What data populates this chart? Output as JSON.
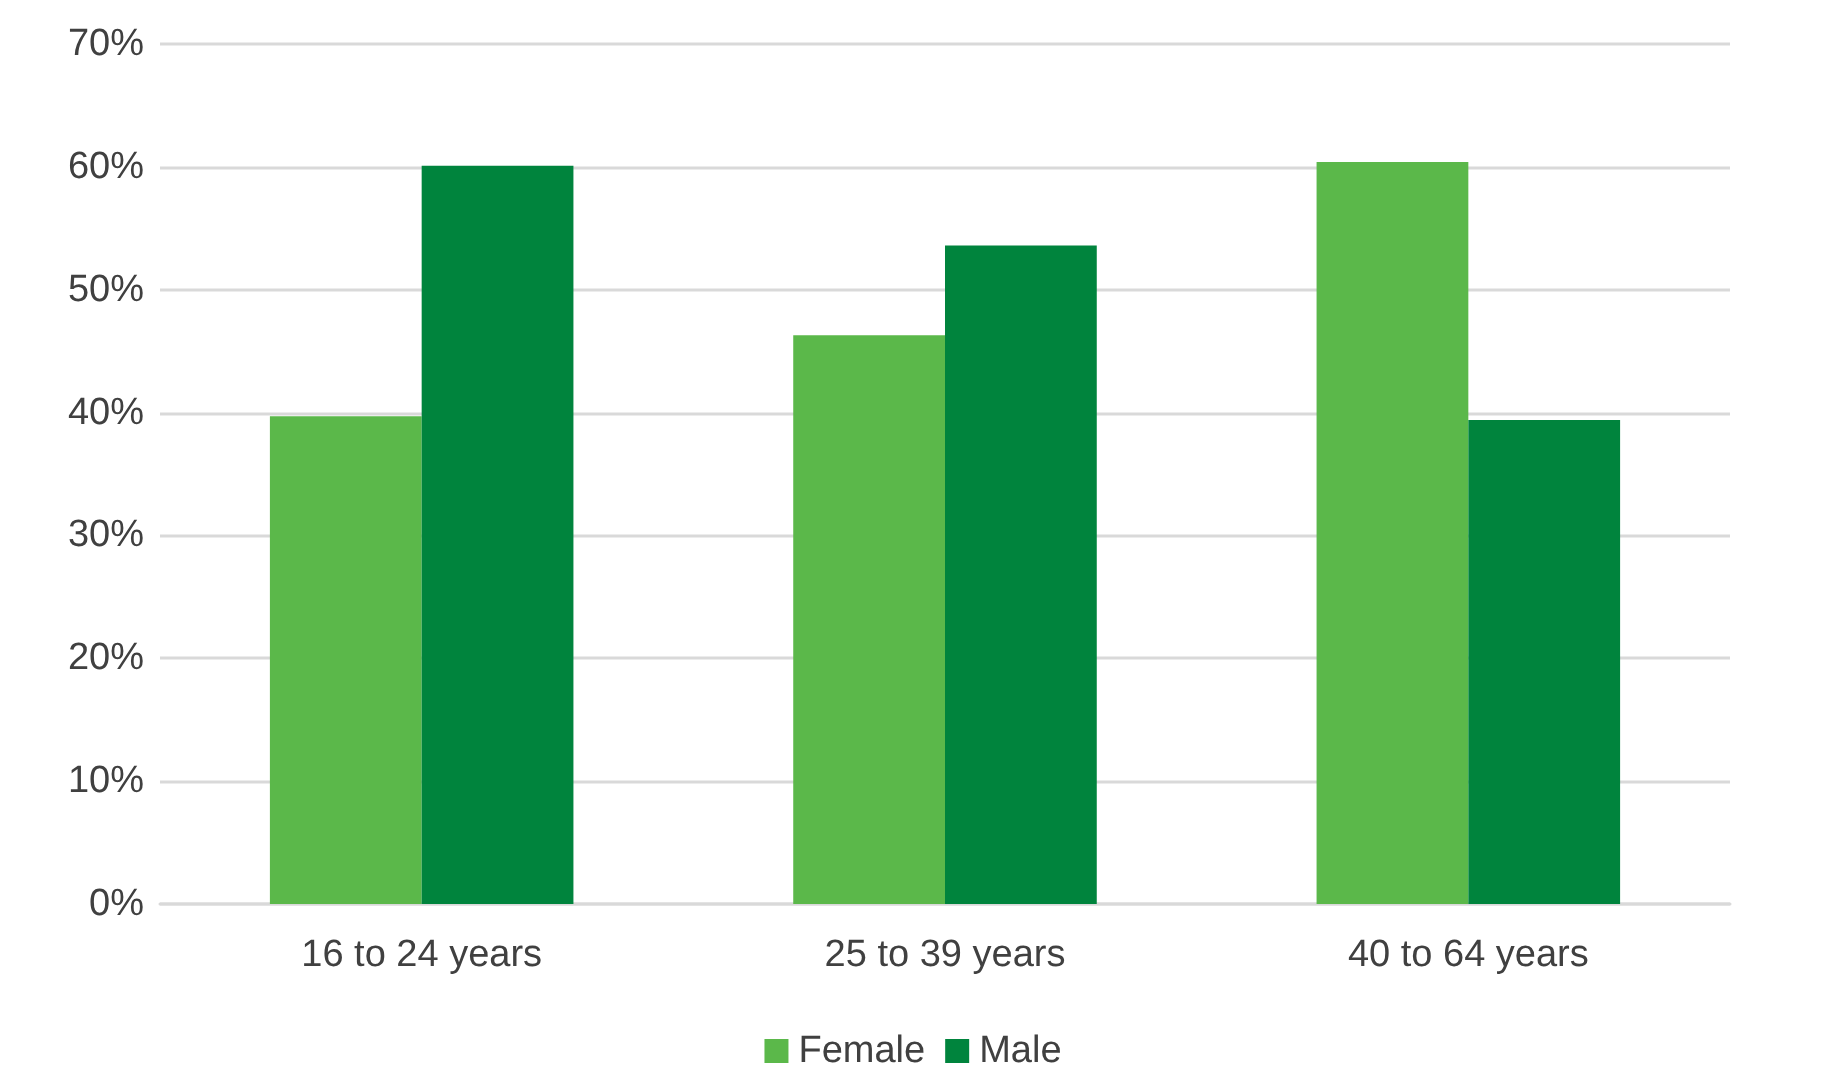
{
  "chart_data": {
    "type": "bar",
    "categories": [
      "16 to 24 years",
      "25 to 39 years",
      "40 to 64 years"
    ],
    "series": [
      {
        "name": "Female",
        "color": "#5bb84a",
        "values": [
          39.7,
          46.3,
          60.4
        ]
      },
      {
        "name": "Male",
        "color": "#00843d",
        "values": [
          60.1,
          53.6,
          39.4
        ]
      }
    ],
    "ylim": [
      0,
      70
    ],
    "yticks": [
      {
        "value": 0,
        "label": "0%"
      },
      {
        "value": 10,
        "label": "10%"
      },
      {
        "value": 20,
        "label": "20%"
      },
      {
        "value": 30,
        "label": "30%"
      },
      {
        "value": 40,
        "label": "40%"
      },
      {
        "value": 50,
        "label": "50%"
      },
      {
        "value": 60,
        "label": "60%"
      },
      {
        "value": 70,
        "label": "70%"
      }
    ],
    "grid": "y",
    "legend": "bottom"
  }
}
